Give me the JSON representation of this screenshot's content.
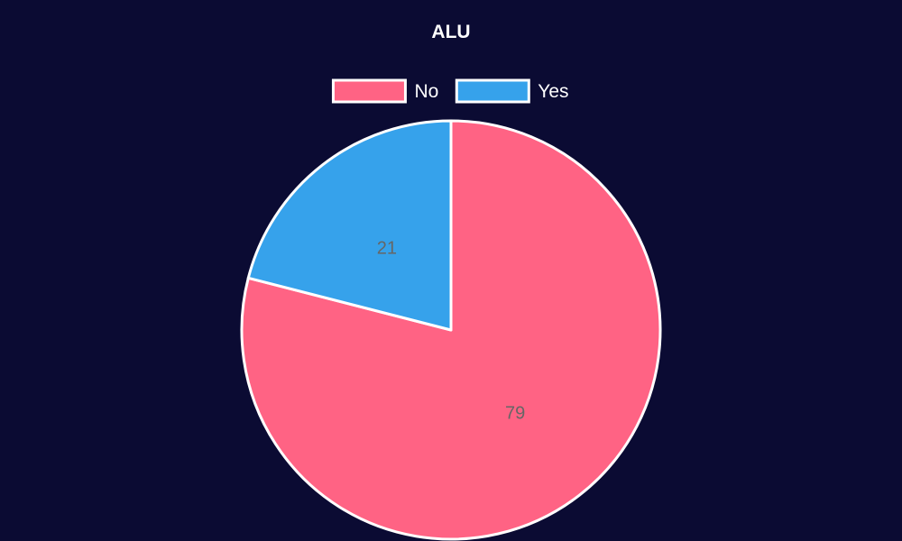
{
  "chart_data": {
    "type": "pie",
    "title": "ALU",
    "legend_position": "top",
    "categories": [
      "No",
      "Yes"
    ],
    "values": [
      79,
      21
    ],
    "colors": [
      "#ff6384",
      "#36a2eb"
    ],
    "background_color": "#0b0b33",
    "border_color": "#ffffff",
    "label_color": "#666666",
    "text_color": "#ffffff"
  }
}
